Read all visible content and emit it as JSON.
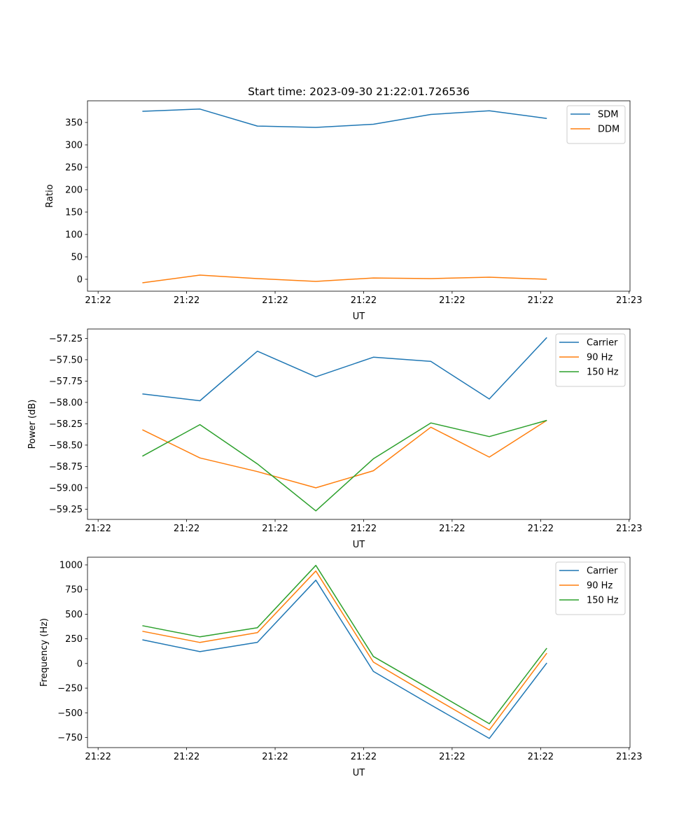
{
  "colors": {
    "c0": "#1f77b4",
    "c1": "#ff7f0e",
    "c2": "#2ca02c"
  },
  "chart_data": [
    {
      "type": "line",
      "title": "Start time: 2023-09-30 21:22:01.726536",
      "xlabel": "UT",
      "ylabel": "Ratio",
      "xlim": [
        -1.2,
        60.1
      ],
      "ylim": [
        -26.6,
        398.4
      ],
      "xticks": [
        0,
        10,
        20,
        30,
        40,
        50,
        60
      ],
      "xtick_labels": [
        "21:22",
        "21:22",
        "21:22",
        "21:22",
        "21:22",
        "21:22",
        "21:23"
      ],
      "yticks": [
        0,
        50,
        100,
        150,
        200,
        250,
        300,
        350
      ],
      "ytick_labels": [
        "0",
        "50",
        "100",
        "150",
        "200",
        "250",
        "300",
        "350"
      ],
      "legend": "top-right",
      "x": [
        5.0,
        11.5,
        18.0,
        24.6,
        31.1,
        37.6,
        44.2,
        50.7
      ],
      "series": [
        {
          "name": "SDM",
          "color": "#1f77b4",
          "values": [
            375,
            380,
            342,
            339,
            346,
            368,
            376,
            359
          ]
        },
        {
          "name": "DDM",
          "color": "#ff7f0e",
          "values": [
            -7.8,
            9.4,
            1.5,
            -4.7,
            3.0,
            1.5,
            4.7,
            0.0
          ]
        }
      ]
    },
    {
      "type": "line",
      "title": "",
      "xlabel": "UT",
      "ylabel": "Power (dB)",
      "xlim": [
        -1.2,
        60.1
      ],
      "ylim": [
        -59.37,
        -57.14
      ],
      "xticks": [
        0,
        10,
        20,
        30,
        40,
        50,
        60
      ],
      "xtick_labels": [
        "21:22",
        "21:22",
        "21:22",
        "21:22",
        "21:22",
        "21:22",
        "21:23"
      ],
      "yticks": [
        -59.25,
        -59.0,
        -58.75,
        -58.5,
        -58.25,
        -58.0,
        -57.75,
        -57.5,
        -57.25
      ],
      "ytick_labels": [
        "−59.25",
        "−59.00",
        "−58.75",
        "−58.50",
        "−58.25",
        "−58.00",
        "−57.75",
        "−57.50",
        "−57.25"
      ],
      "legend": "top-right",
      "x": [
        5.0,
        11.5,
        18.0,
        24.6,
        31.1,
        37.6,
        44.2,
        50.7
      ],
      "series": [
        {
          "name": "Carrier",
          "color": "#1f77b4",
          "values": [
            -57.9,
            -57.98,
            -57.4,
            -57.7,
            -57.47,
            -57.52,
            -57.96,
            -57.24
          ]
        },
        {
          "name": "90 Hz",
          "color": "#ff7f0e",
          "values": [
            -58.32,
            -58.65,
            -58.81,
            -59.0,
            -58.8,
            -58.29,
            -58.64,
            -58.21
          ]
        },
        {
          "name": "150 Hz",
          "color": "#2ca02c",
          "values": [
            -58.63,
            -58.26,
            -58.72,
            -59.27,
            -58.66,
            -58.24,
            -58.4,
            -58.21
          ]
        }
      ]
    },
    {
      "type": "line",
      "title": "",
      "xlabel": "UT",
      "ylabel": "Frequency (Hz)",
      "xlim": [
        -1.2,
        60.1
      ],
      "ylim": [
        -853,
        1078
      ],
      "xticks": [
        0,
        10,
        20,
        30,
        40,
        50,
        60
      ],
      "xtick_labels": [
        "21:22",
        "21:22",
        "21:22",
        "21:22",
        "21:22",
        "21:22",
        "21:23"
      ],
      "yticks": [
        -750,
        -500,
        -250,
        0,
        250,
        500,
        750,
        1000
      ],
      "ytick_labels": [
        "−750",
        "−500",
        "−250",
        "0",
        "250",
        "500",
        "750",
        "1000"
      ],
      "legend": "top-right",
      "x": [
        5.0,
        11.5,
        18.0,
        24.6,
        31.1,
        37.6,
        44.2,
        50.7
      ],
      "series": [
        {
          "name": "Carrier",
          "color": "#1f77b4",
          "values": [
            240,
            120,
            215,
            845,
            -80,
            -420,
            -760,
            5
          ]
        },
        {
          "name": "90 Hz",
          "color": "#ff7f0e",
          "values": [
            327,
            213,
            313,
            938,
            14,
            -330,
            -675,
            105
          ]
        },
        {
          "name": "150 Hz",
          "color": "#2ca02c",
          "values": [
            384,
            270,
            363,
            995,
            71,
            -265,
            -611,
            156
          ]
        }
      ]
    }
  ]
}
